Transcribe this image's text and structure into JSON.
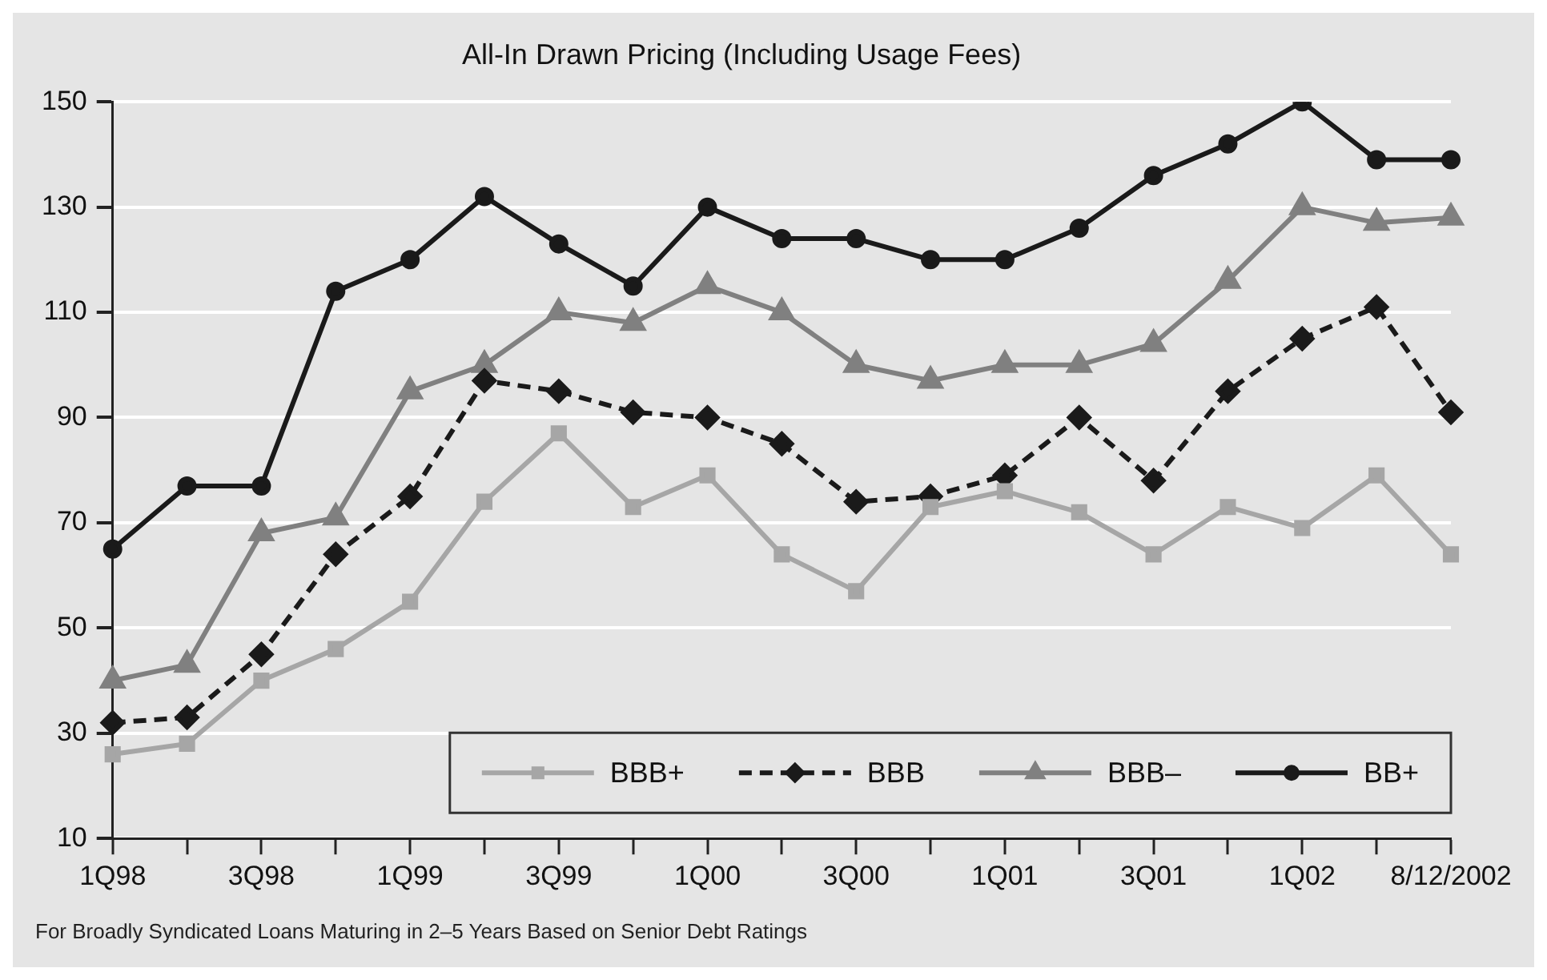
{
  "chart_data": {
    "type": "line",
    "title": "All-In Drawn Pricing (Including Usage Fees)",
    "categories": [
      "1Q98",
      null,
      "3Q98",
      null,
      "1Q99",
      null,
      "3Q99",
      null,
      "1Q00",
      null,
      "3Q00",
      null,
      "1Q01",
      null,
      "3Q01",
      null,
      "1Q02",
      null,
      "8/12/2002"
    ],
    "series": [
      {
        "name": "BBB+",
        "color": "#a6a6a6",
        "marker": "square",
        "line_style": "solid",
        "values": [
          26,
          28,
          40,
          46,
          55,
          74,
          87,
          73,
          79,
          64,
          57,
          73,
          76,
          72,
          64,
          73,
          69,
          79,
          64
        ]
      },
      {
        "name": "BBB",
        "color": "#1a1a1a",
        "marker": "diamond",
        "line_style": "dashed",
        "values": [
          32,
          33,
          45,
          64,
          75,
          97,
          95,
          91,
          90,
          85,
          74,
          75,
          79,
          90,
          78,
          95,
          105,
          111,
          91
        ]
      },
      {
        "name": "BBB–",
        "color": "#808080",
        "marker": "triangle",
        "line_style": "solid",
        "values": [
          40,
          43,
          68,
          71,
          95,
          100,
          110,
          108,
          115,
          110,
          100,
          97,
          100,
          100,
          104,
          116,
          130,
          127,
          128
        ]
      },
      {
        "name": "BB+",
        "color": "#1a1a1a",
        "marker": "circle",
        "line_style": "solid",
        "values": [
          65,
          77,
          77,
          114,
          120,
          132,
          123,
          115,
          130,
          124,
          124,
          120,
          120,
          126,
          136,
          142,
          150,
          139,
          139
        ]
      }
    ],
    "ylim": [
      10,
      150
    ],
    "yticks": [
      10,
      30,
      50,
      70,
      90,
      110,
      130,
      150
    ],
    "grid": "y",
    "legend": "bottom right",
    "annotations": [
      "For Broadly Syndicated Loans Maturing in 2–5 Years Based on Senior Debt Ratings"
    ]
  }
}
